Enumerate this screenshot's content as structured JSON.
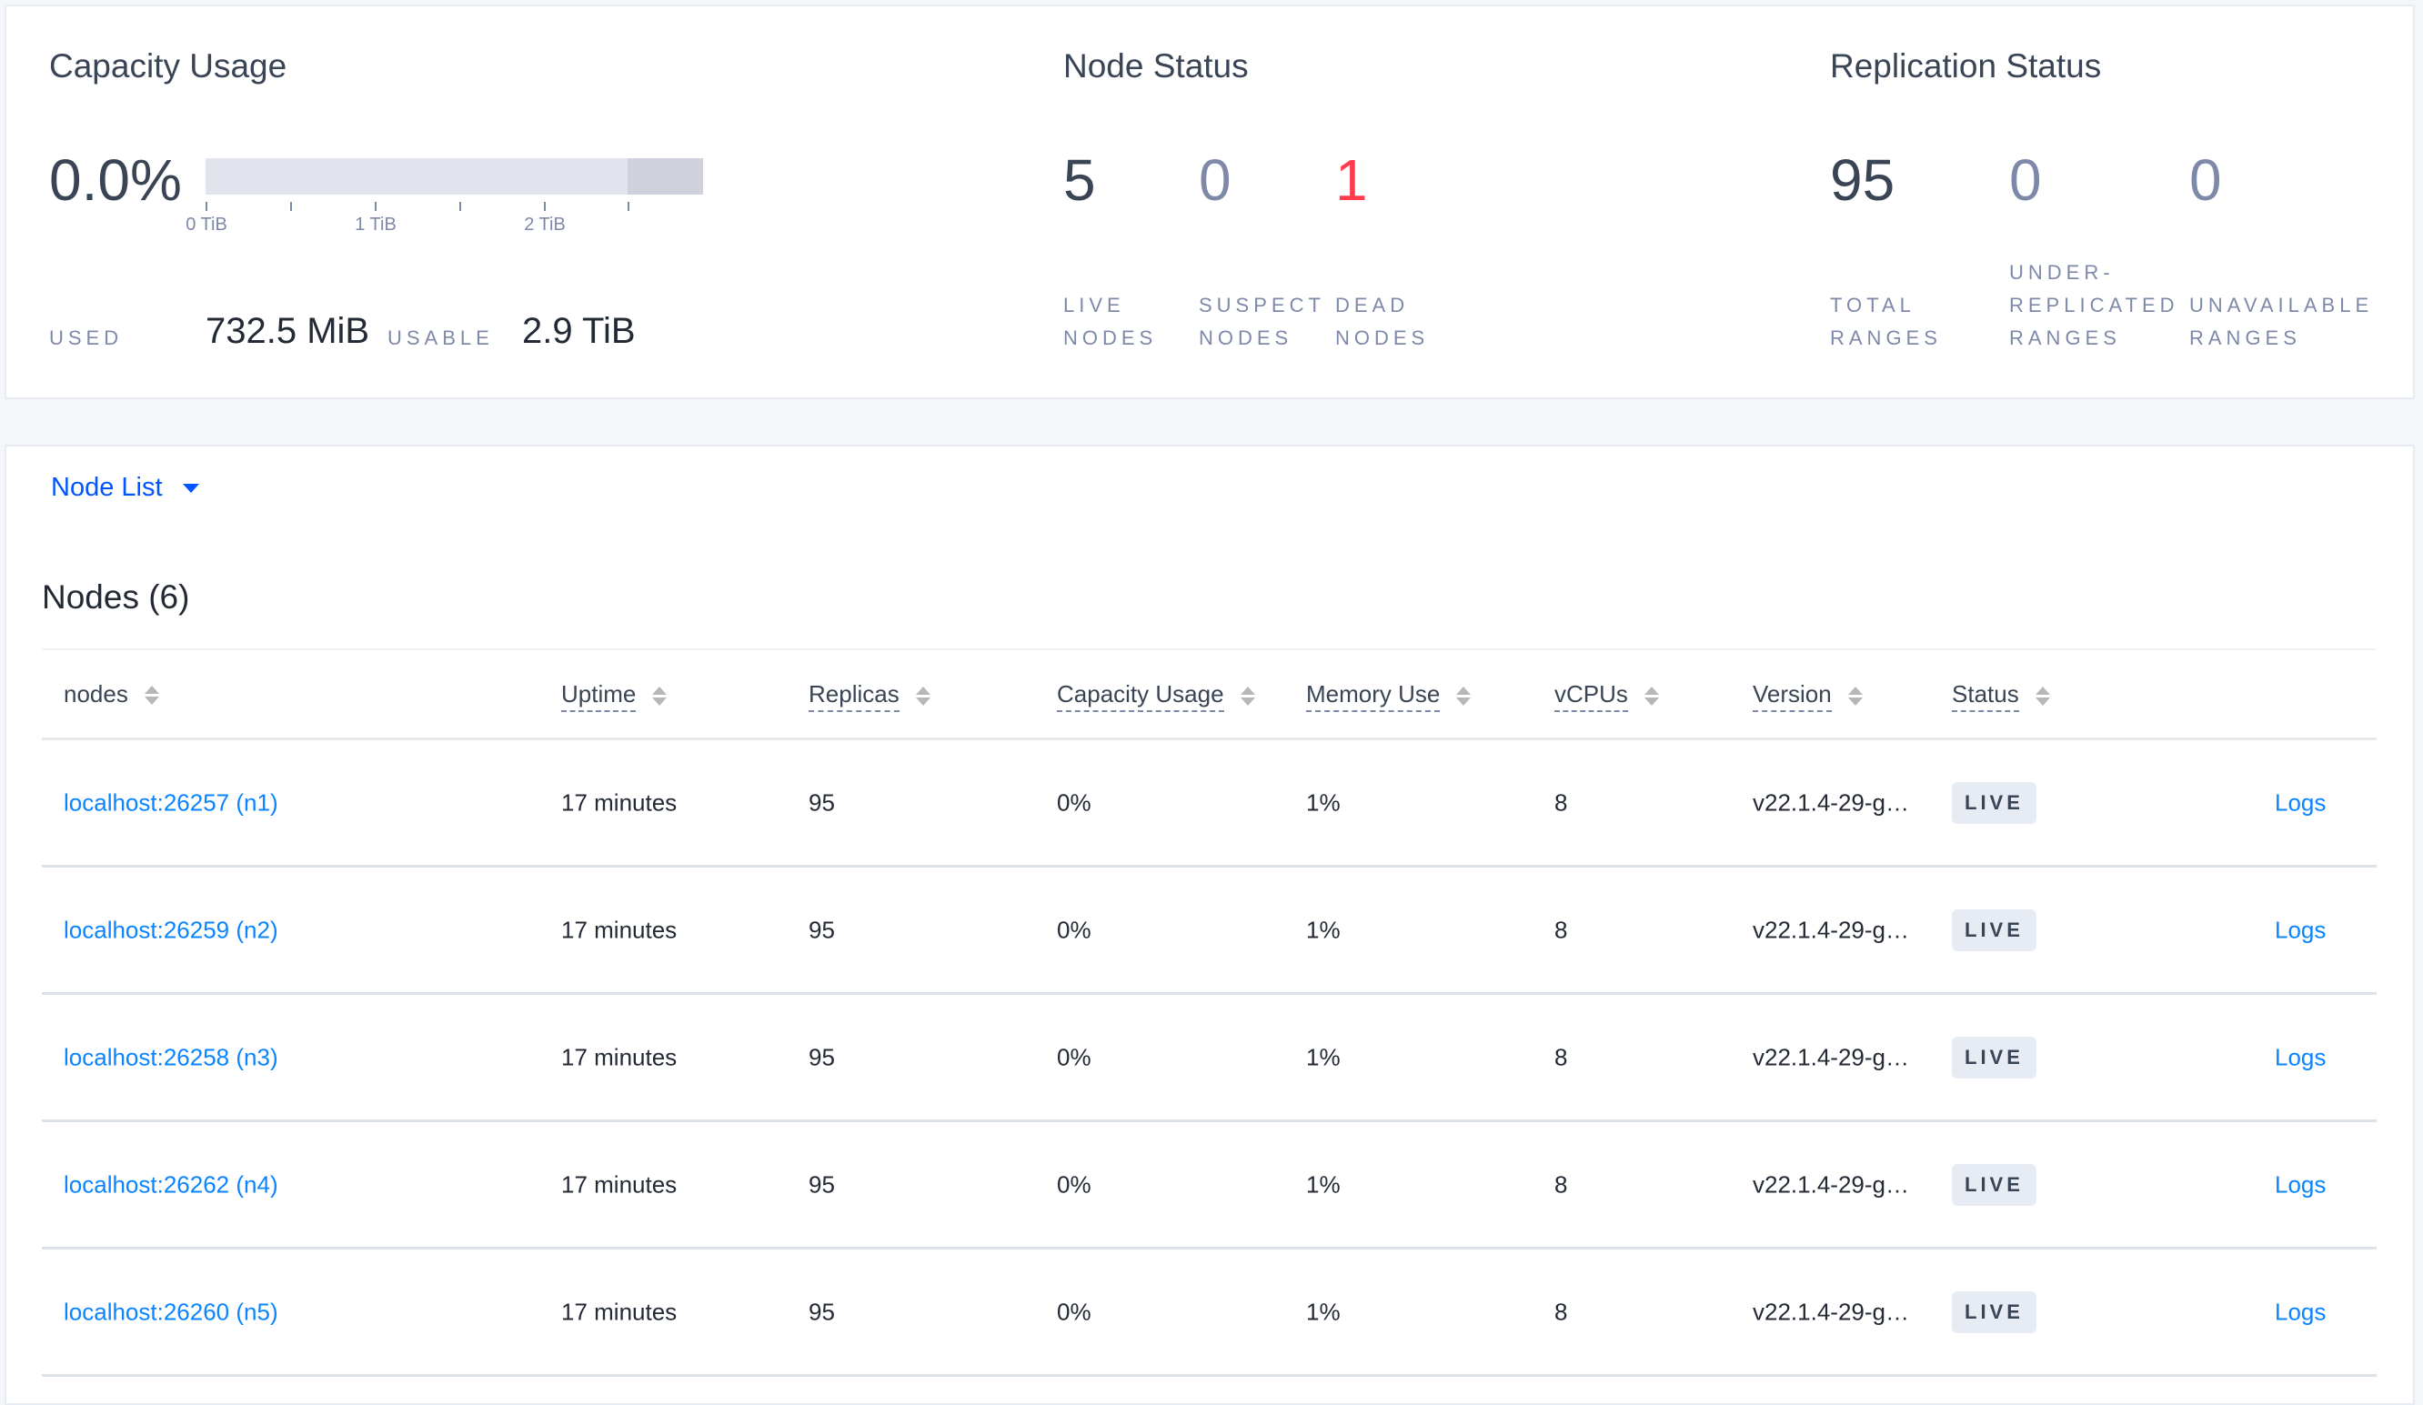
{
  "capacity": {
    "title": "Capacity Usage",
    "percent": "0.0%",
    "used_fraction": 0.0,
    "axis_ticks": [
      "0 TiB",
      "1 TiB",
      "2 TiB"
    ],
    "used_label": "USED",
    "used_value": "732.5 MiB",
    "usable_label": "USABLE",
    "usable_value": "2.9 TiB"
  },
  "node_status": {
    "title": "Node Status",
    "live": {
      "value": "5",
      "label1": "LIVE",
      "label2": "NODES"
    },
    "suspect": {
      "value": "0",
      "label1": "SUSPECT",
      "label2": "NODES"
    },
    "dead": {
      "value": "1",
      "label1": "DEAD",
      "label2": "NODES"
    }
  },
  "replication": {
    "title": "Replication Status",
    "total": {
      "value": "95",
      "label1": "TOTAL",
      "label2": "RANGES"
    },
    "under": {
      "value": "0",
      "label0": "UNDER-",
      "label1": "REPLICATED",
      "label2": "RANGES"
    },
    "unavailable": {
      "value": "0",
      "label1": "UNAVAILABLE",
      "label2": "RANGES"
    }
  },
  "colors": {
    "dead": "#ff3b4e",
    "link": "#0a84ff",
    "muted_value": "#7e89a9"
  },
  "view_select": {
    "label": "Node List"
  },
  "nodes": {
    "title": "Nodes (6)",
    "columns": [
      "nodes",
      "Uptime",
      "Replicas",
      "Capacity Usage",
      "Memory Use",
      "vCPUs",
      "Version",
      "Status"
    ],
    "rows": [
      {
        "node": "localhost:26257 (n1)",
        "uptime": "17 minutes",
        "replicas": "95",
        "capacity": "0%",
        "memory": "1%",
        "vcpus": "8",
        "version": "v22.1.4-29-g…",
        "status": "LIVE",
        "logs": "Logs"
      },
      {
        "node": "localhost:26259 (n2)",
        "uptime": "17 minutes",
        "replicas": "95",
        "capacity": "0%",
        "memory": "1%",
        "vcpus": "8",
        "version": "v22.1.4-29-g…",
        "status": "LIVE",
        "logs": "Logs"
      },
      {
        "node": "localhost:26258 (n3)",
        "uptime": "17 minutes",
        "replicas": "95",
        "capacity": "0%",
        "memory": "1%",
        "vcpus": "8",
        "version": "v22.1.4-29-g…",
        "status": "LIVE",
        "logs": "Logs"
      },
      {
        "node": "localhost:26262 (n4)",
        "uptime": "17 minutes",
        "replicas": "95",
        "capacity": "0%",
        "memory": "1%",
        "vcpus": "8",
        "version": "v22.1.4-29-g…",
        "status": "LIVE",
        "logs": "Logs"
      },
      {
        "node": "localhost:26260 (n5)",
        "uptime": "17 minutes",
        "replicas": "95",
        "capacity": "0%",
        "memory": "1%",
        "vcpus": "8",
        "version": "v22.1.4-29-g…",
        "status": "LIVE",
        "logs": "Logs"
      }
    ]
  }
}
